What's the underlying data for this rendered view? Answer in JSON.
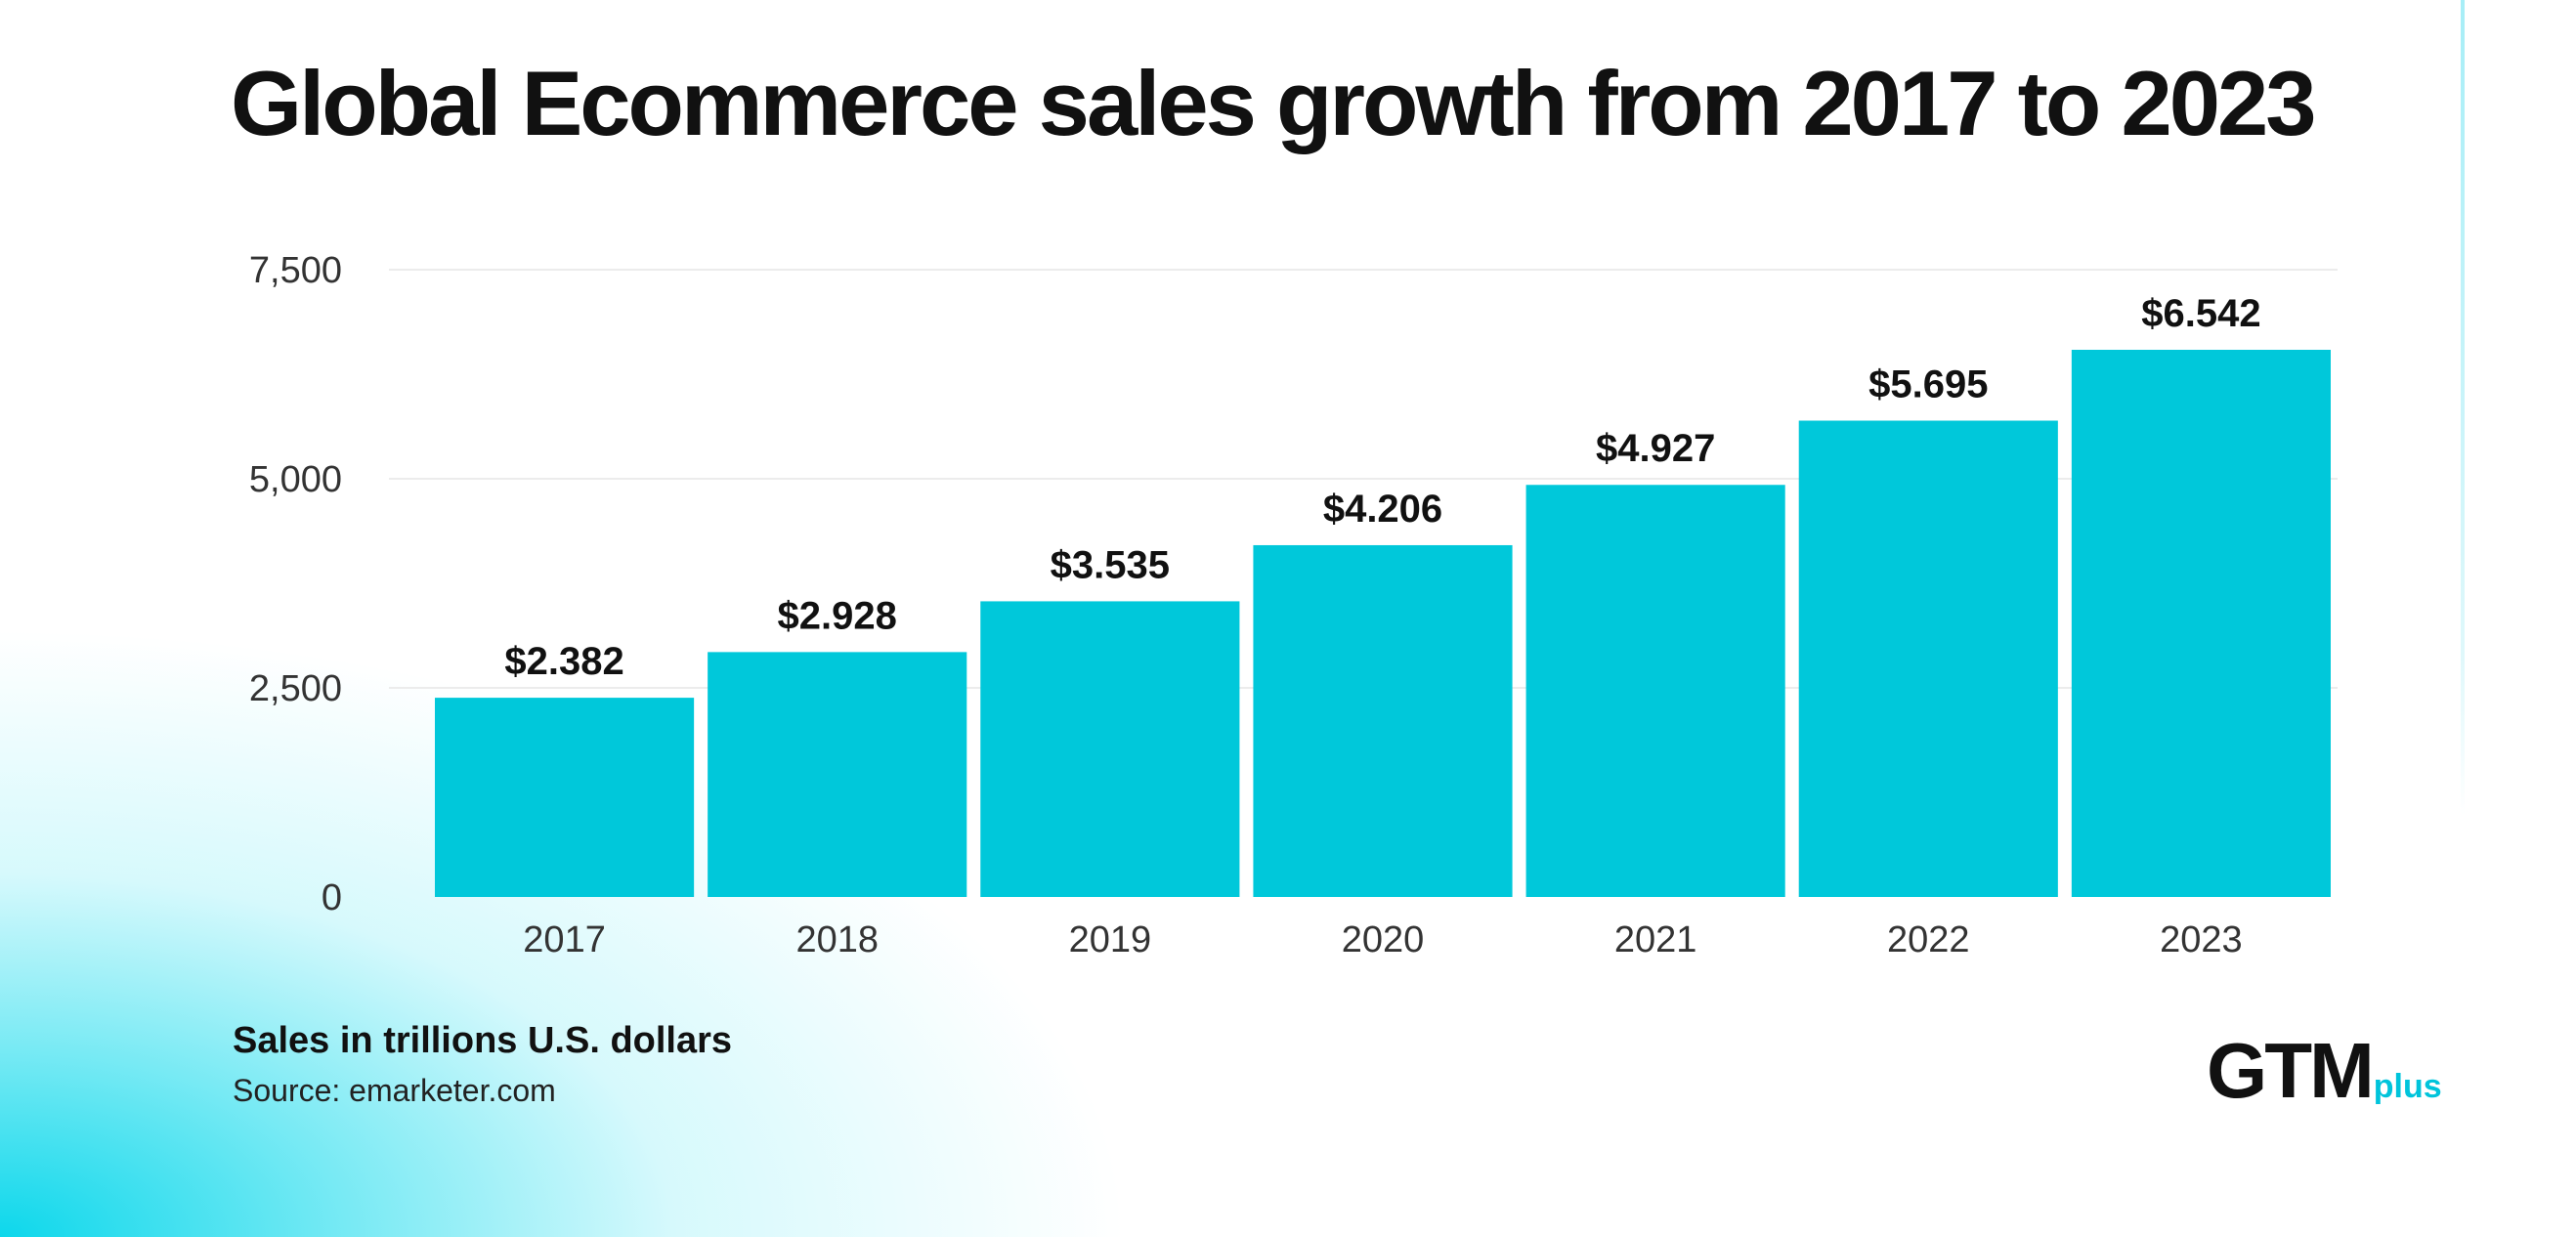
{
  "title": "Global Ecommerce sales growth from 2017 to 2023",
  "footer": {
    "note": "Sales in trillions U.S. dollars",
    "source": "Source: emarketer.com"
  },
  "logo": {
    "main": "GTM",
    "sub": "plus"
  },
  "colors": {
    "bar": "#00c8da",
    "text": "#111111",
    "accent": "#00c4db"
  },
  "chart_data": {
    "type": "bar",
    "categories": [
      "2017",
      "2018",
      "2019",
      "2020",
      "2021",
      "2022",
      "2023"
    ],
    "values": [
      2382,
      2928,
      3535,
      4206,
      4927,
      5695,
      6542
    ],
    "data_labels": [
      "$2.382",
      "$2.928",
      "$3.535",
      "$4.206",
      "$4.927",
      "$5.695",
      "$6.542"
    ],
    "yticks": [
      0,
      2500,
      5000,
      7500
    ],
    "ytick_labels": [
      "0",
      "2,500",
      "5,000",
      "7,500"
    ],
    "ylim": [
      0,
      7500
    ],
    "grid": true,
    "legend": "none"
  }
}
